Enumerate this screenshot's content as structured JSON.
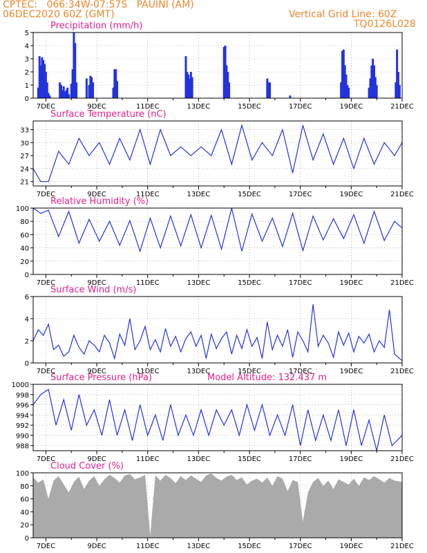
{
  "header": {
    "line1": "CPTEC:   066:34W-07:57S   PAUINI (AM)",
    "line2": "06DEC2020 60Z (GMT)",
    "right1": "Vertical Grid Line: 60Z",
    "right2": "TQ0126L028"
  },
  "x_ticks": [
    "7DEC",
    "9DEC",
    "11DEC",
    "13DEC",
    "15DEC",
    "17DEC",
    "19DEC",
    "21DEC"
  ],
  "x_range": [
    6.5,
    21
  ],
  "colors": {
    "header": "#e8862a",
    "title": "#e0208c",
    "line": "#2233dd",
    "bars": "#2233dd",
    "cloud": "#aaaaaa"
  },
  "chart_data": [
    {
      "type": "bar",
      "title": "Precipitation (mm/h)",
      "ylim": [
        0,
        5
      ],
      "yticks": [
        0,
        1,
        2,
        3,
        4,
        5
      ],
      "series": [
        {
          "x": [
            6.7,
            6.75,
            6.8,
            6.85,
            6.9,
            6.95,
            7.0,
            7.05,
            7.1,
            7.15,
            7.55,
            7.6,
            7.65,
            7.7,
            7.75,
            7.8,
            7.85,
            7.9,
            8.0,
            8.05,
            8.1,
            8.15,
            8.2,
            8.6,
            8.7,
            8.75,
            8.8,
            8.85,
            9.65,
            9.7,
            9.75,
            9.8,
            12.5,
            12.55,
            12.6,
            12.65,
            12.7,
            12.75,
            14.0,
            14.05,
            14.1,
            14.15,
            14.2,
            15.7,
            15.75,
            15.8,
            16.6,
            18.6,
            18.65,
            18.7,
            18.75,
            18.8,
            18.85,
            18.9,
            19.7,
            19.75,
            19.8,
            19.85,
            19.9,
            19.95,
            20.0,
            20.75,
            20.8,
            20.85,
            20.9
          ],
          "values": [
            0.8,
            3.2,
            2.5,
            3.1,
            2.9,
            2.6,
            2.0,
            1.2,
            0.4,
            0.2,
            1.2,
            1.0,
            0.6,
            0.9,
            0.5,
            0.6,
            0.8,
            0.3,
            1.1,
            2.2,
            5.0,
            4.2,
            1.2,
            1.5,
            1.0,
            1.7,
            1.6,
            1.2,
            0.8,
            2.2,
            2.2,
            1.3,
            3.2,
            2.0,
            1.8,
            1.5,
            2.0,
            1.6,
            3.9,
            4.0,
            2.5,
            2.0,
            1.2,
            1.5,
            1.2,
            1.2,
            0.2,
            1.2,
            3.6,
            3.7,
            2.5,
            1.8,
            1.0,
            0.8,
            0.8,
            1.5,
            2.5,
            3.0,
            2.5,
            1.6,
            1.0,
            1.2,
            3.7,
            2.0,
            1.0
          ]
        }
      ]
    },
    {
      "type": "line",
      "title": "Surface Temperature (nC)",
      "ylim": [
        20,
        35
      ],
      "yticks": [
        21,
        24,
        27,
        30,
        33
      ],
      "series": [
        {
          "x": [
            6.5,
            6.8,
            7.1,
            7.5,
            7.9,
            8.3,
            8.7,
            9.1,
            9.5,
            9.9,
            10.3,
            10.7,
            11.1,
            11.5,
            11.9,
            12.3,
            12.7,
            13.1,
            13.5,
            13.9,
            14.3,
            14.7,
            15.1,
            15.5,
            15.9,
            16.3,
            16.7,
            17.1,
            17.5,
            17.9,
            18.3,
            18.7,
            19.1,
            19.5,
            19.9,
            20.3,
            20.7,
            21.0
          ],
          "values": [
            24,
            21,
            21,
            28,
            25,
            31,
            27,
            30,
            25,
            31,
            26,
            33,
            25,
            33,
            27,
            29,
            27,
            29,
            27,
            33,
            25,
            34,
            26,
            30,
            27,
            33,
            23,
            34,
            26,
            32,
            25,
            31,
            24,
            31,
            25,
            30,
            27,
            30
          ]
        }
      ]
    },
    {
      "type": "line",
      "title": "Relative Humidity (%)",
      "ylim": [
        0,
        100
      ],
      "yticks": [
        0,
        20,
        40,
        60,
        80,
        100
      ],
      "series": [
        {
          "x": [
            6.5,
            6.8,
            7.1,
            7.5,
            7.9,
            8.3,
            8.7,
            9.1,
            9.5,
            9.9,
            10.3,
            10.7,
            11.1,
            11.5,
            11.9,
            12.3,
            12.7,
            13.1,
            13.5,
            13.9,
            14.3,
            14.7,
            15.1,
            15.5,
            15.9,
            16.3,
            16.7,
            17.1,
            17.5,
            17.9,
            18.3,
            18.7,
            19.1,
            19.5,
            19.9,
            20.3,
            20.7,
            21.0
          ],
          "values": [
            100,
            92,
            97,
            57,
            95,
            47,
            83,
            50,
            80,
            44,
            81,
            35,
            85,
            40,
            88,
            43,
            90,
            40,
            89,
            38,
            100,
            35,
            91,
            50,
            85,
            42,
            92,
            36,
            88,
            52,
            84,
            54,
            90,
            47,
            95,
            51,
            80,
            70
          ]
        }
      ]
    },
    {
      "type": "line",
      "title": "Surface Wind (m/s)",
      "ylim": [
        0,
        6
      ],
      "yticks": [
        0,
        2,
        4,
        6
      ],
      "series": [
        {
          "x": [
            6.5,
            6.7,
            6.9,
            7.1,
            7.3,
            7.5,
            7.7,
            7.9,
            8.1,
            8.3,
            8.5,
            8.7,
            8.9,
            9.1,
            9.3,
            9.5,
            9.7,
            9.9,
            10.1,
            10.3,
            10.5,
            10.7,
            10.9,
            11.1,
            11.3,
            11.5,
            11.7,
            11.9,
            12.1,
            12.3,
            12.5,
            12.7,
            12.9,
            13.1,
            13.3,
            13.5,
            13.7,
            13.9,
            14.1,
            14.3,
            14.5,
            14.7,
            14.9,
            15.1,
            15.3,
            15.5,
            15.7,
            15.9,
            16.1,
            16.3,
            16.5,
            16.7,
            16.9,
            17.1,
            17.3,
            17.5,
            17.7,
            17.9,
            18.1,
            18.3,
            18.5,
            18.7,
            18.9,
            19.1,
            19.3,
            19.5,
            19.7,
            19.9,
            20.1,
            20.3,
            20.5,
            20.7,
            21.0
          ],
          "values": [
            2.0,
            3.0,
            2.5,
            3.5,
            1.2,
            1.6,
            0.6,
            1.0,
            2.5,
            1.4,
            0.8,
            2.0,
            1.6,
            1.0,
            2.5,
            1.8,
            0.4,
            2.6,
            1.6,
            4.0,
            1.2,
            2.0,
            3.3,
            1.2,
            2.1,
            1.0,
            3.1,
            1.5,
            2.4,
            1.0,
            2.2,
            2.8,
            1.5,
            2.5,
            0.4,
            2.6,
            1.3,
            2.2,
            2.8,
            0.8,
            2.5,
            1.3,
            3.0,
            1.5,
            2.3,
            0.4,
            3.7,
            1.2,
            2.5,
            1.5,
            3.0,
            0.5,
            2.8,
            2.0,
            1.0,
            5.3,
            1.5,
            2.5,
            1.8,
            0.5,
            2.8,
            1.6,
            2.7,
            1.0,
            2.4,
            1.8,
            2.6,
            1.0,
            2.0,
            1.4,
            4.8,
            0.8,
            0.2
          ]
        }
      ]
    },
    {
      "type": "line",
      "title": "Surface Pressure (hPa)",
      "annotation": "Model Altitude: 132.437  m",
      "ylim": [
        987,
        1000
      ],
      "yticks": [
        988,
        990,
        992,
        994,
        996,
        998,
        1000
      ],
      "series": [
        {
          "x": [
            6.5,
            6.8,
            7.1,
            7.4,
            7.7,
            8.0,
            8.3,
            8.6,
            8.9,
            9.2,
            9.5,
            9.8,
            10.1,
            10.4,
            10.7,
            11.0,
            11.3,
            11.6,
            11.9,
            12.2,
            12.5,
            12.8,
            13.1,
            13.4,
            13.7,
            14.0,
            14.3,
            14.6,
            14.9,
            15.2,
            15.5,
            15.8,
            16.1,
            16.4,
            16.7,
            17.0,
            17.3,
            17.6,
            17.9,
            18.2,
            18.5,
            18.8,
            19.1,
            19.4,
            19.7,
            20.0,
            20.3,
            20.6,
            21.0
          ],
          "values": [
            996,
            998,
            999,
            992,
            997,
            991,
            998,
            992,
            995,
            990,
            997,
            990,
            995,
            989,
            996,
            990,
            994,
            989,
            996,
            990,
            994,
            990,
            995,
            990,
            995,
            992,
            995,
            990,
            996,
            991,
            996,
            990,
            994,
            990,
            996,
            988,
            995,
            989,
            994,
            989,
            995,
            988,
            995,
            988,
            993,
            987,
            994,
            988,
            990
          ]
        }
      ]
    },
    {
      "type": "area",
      "title": "Cloud Cover (%)",
      "ylim": [
        0,
        100
      ],
      "yticks": [
        0,
        20,
        40,
        60,
        80,
        100
      ],
      "series": [
        {
          "x": [
            6.5,
            6.7,
            6.9,
            7.1,
            7.3,
            7.5,
            7.7,
            7.9,
            8.1,
            8.3,
            8.5,
            8.7,
            8.9,
            9.1,
            9.3,
            9.5,
            9.7,
            9.9,
            10.1,
            10.3,
            10.5,
            10.7,
            10.9,
            11.1,
            11.3,
            11.5,
            11.7,
            11.9,
            12.1,
            12.3,
            12.5,
            12.7,
            12.9,
            13.1,
            13.3,
            13.5,
            13.7,
            13.9,
            14.1,
            14.3,
            14.5,
            14.7,
            14.9,
            15.1,
            15.3,
            15.5,
            15.7,
            15.9,
            16.1,
            16.3,
            16.5,
            16.7,
            16.9,
            17.1,
            17.3,
            17.5,
            17.7,
            17.9,
            18.1,
            18.3,
            18.5,
            18.7,
            18.9,
            19.1,
            19.3,
            19.5,
            19.7,
            19.9,
            20.1,
            20.3,
            20.5,
            20.7,
            21.0
          ],
          "values": [
            93,
            85,
            90,
            60,
            88,
            95,
            82,
            70,
            86,
            94,
            75,
            88,
            95,
            80,
            90,
            97,
            92,
            85,
            96,
            98,
            90,
            93,
            97,
            3,
            96,
            88,
            97,
            92,
            84,
            95,
            89,
            96,
            91,
            86,
            96,
            99,
            92,
            88,
            94,
            97,
            89,
            93,
            82,
            88,
            91,
            85,
            93,
            80,
            95,
            91,
            72,
            89,
            86,
            25,
            70,
            86,
            92,
            80,
            88,
            75,
            90,
            86,
            82,
            91,
            80,
            93,
            89,
            95,
            90,
            85,
            92,
            88,
            86
          ]
        }
      ]
    }
  ]
}
